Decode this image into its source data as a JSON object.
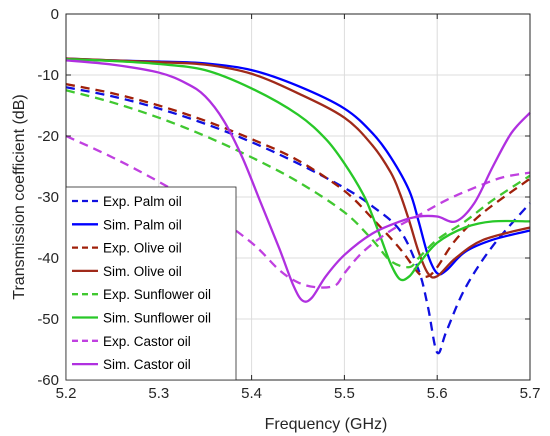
{
  "chart_data": {
    "type": "line",
    "xlabel": "Frequency (GHz)",
    "ylabel": "Transmission coefficient (dB)",
    "xlim": [
      5.2,
      5.7
    ],
    "ylim": [
      -60,
      0
    ],
    "xticks": [
      "5.2",
      "5.3",
      "5.4",
      "5.5",
      "5.6",
      "5.7"
    ],
    "yticks": [
      "0",
      "-10",
      "-20",
      "-30",
      "-40",
      "-50",
      "-60"
    ],
    "grid": true,
    "legend_position": "bottom-left",
    "series": [
      {
        "name": "Exp. Palm oil",
        "color": "#1010e0",
        "dash": true,
        "x": [
          5.2,
          5.25,
          5.3,
          5.35,
          5.4,
          5.45,
          5.5,
          5.53,
          5.56,
          5.58,
          5.59,
          5.6,
          5.61,
          5.63,
          5.66,
          5.7
        ],
        "y": [
          -12,
          -13.5,
          -15.5,
          -18,
          -21,
          -24.5,
          -28.5,
          -31.5,
          -35.5,
          -42,
          -48,
          -55.5,
          -52,
          -45,
          -38,
          -31
        ]
      },
      {
        "name": "Sim. Palm oil",
        "color": "#0000ff",
        "dash": false,
        "x": [
          5.2,
          5.25,
          5.3,
          5.35,
          5.4,
          5.45,
          5.5,
          5.53,
          5.55,
          5.57,
          5.58,
          5.59,
          5.6,
          5.61,
          5.63,
          5.66,
          5.7
        ],
        "y": [
          -7.3,
          -7.6,
          -7.8,
          -8.1,
          -9.2,
          -11.8,
          -15.5,
          -19.5,
          -23.5,
          -29,
          -34,
          -39.5,
          -42.5,
          -42,
          -39,
          -37,
          -35.5
        ]
      },
      {
        "name": "Exp. Olive oil",
        "color": "#a0200a",
        "dash": true,
        "x": [
          5.2,
          5.25,
          5.3,
          5.35,
          5.4,
          5.45,
          5.5,
          5.53,
          5.56,
          5.58,
          5.59,
          5.6,
          5.62,
          5.65,
          5.7
        ],
        "y": [
          -11.5,
          -13,
          -15,
          -17.5,
          -20.5,
          -24,
          -29,
          -33.5,
          -38.5,
          -42.5,
          -43,
          -41.5,
          -37,
          -32.5,
          -27
        ]
      },
      {
        "name": "Sim. Olive oil",
        "color": "#a02a1a",
        "dash": false,
        "x": [
          5.2,
          5.25,
          5.3,
          5.35,
          5.4,
          5.45,
          5.5,
          5.53,
          5.55,
          5.56,
          5.57,
          5.58,
          5.59,
          5.6,
          5.62,
          5.65,
          5.7
        ],
        "y": [
          -7.3,
          -7.6,
          -7.9,
          -8.3,
          -9.8,
          -13,
          -17,
          -21.5,
          -26,
          -29.5,
          -34,
          -39,
          -42.5,
          -43,
          -40,
          -37,
          -35
        ]
      },
      {
        "name": "Exp. Sunflower oil",
        "color": "#40c830",
        "dash": true,
        "x": [
          5.2,
          5.25,
          5.3,
          5.35,
          5.4,
          5.45,
          5.5,
          5.53,
          5.55,
          5.57,
          5.58,
          5.6,
          5.63,
          5.66,
          5.7
        ],
        "y": [
          -12.5,
          -14.5,
          -17,
          -20,
          -23.5,
          -27.5,
          -32.5,
          -37,
          -40.5,
          -41.5,
          -40,
          -37,
          -34,
          -30.5,
          -26.5
        ]
      },
      {
        "name": "Sim. Sunflower oil",
        "color": "#28c828",
        "dash": false,
        "x": [
          5.2,
          5.25,
          5.3,
          5.35,
          5.4,
          5.45,
          5.48,
          5.5,
          5.52,
          5.53,
          5.54,
          5.55,
          5.56,
          5.57,
          5.58,
          5.6,
          5.63,
          5.66,
          5.7
        ],
        "y": [
          -7.4,
          -7.7,
          -8.2,
          -9.2,
          -12.2,
          -16.5,
          -20.5,
          -24.5,
          -29.5,
          -33,
          -37,
          -41,
          -43.5,
          -43,
          -41,
          -37.5,
          -35,
          -34,
          -34
        ]
      },
      {
        "name": "Exp. Castor oil",
        "color": "#c040e0",
        "dash": true,
        "x": [
          5.2,
          5.25,
          5.3,
          5.35,
          5.4,
          5.43,
          5.45,
          5.47,
          5.49,
          5.5,
          5.52,
          5.55,
          5.58,
          5.61,
          5.64,
          5.67,
          5.7
        ],
        "y": [
          -20,
          -23.5,
          -27.5,
          -32,
          -37.5,
          -42,
          -44,
          -44.8,
          -44.5,
          -42.5,
          -39,
          -35.5,
          -33,
          -30.5,
          -28.5,
          -26.8,
          -26
        ]
      },
      {
        "name": "Sim. Castor oil",
        "color": "#b030e0",
        "dash": false,
        "x": [
          5.2,
          5.25,
          5.3,
          5.33,
          5.35,
          5.37,
          5.39,
          5.41,
          5.43,
          5.445,
          5.455,
          5.465,
          5.48,
          5.5,
          5.53,
          5.56,
          5.58,
          5.6,
          5.62,
          5.64,
          5.66,
          5.68,
          5.7
        ],
        "y": [
          -7.6,
          -8.3,
          -9.6,
          -11.4,
          -13.5,
          -17.5,
          -23.5,
          -31,
          -38.5,
          -44.5,
          -47,
          -46.5,
          -43,
          -39.5,
          -36,
          -34,
          -33.2,
          -33.2,
          -34,
          -31,
          -25,
          -19.5,
          -16.2
        ]
      }
    ]
  }
}
